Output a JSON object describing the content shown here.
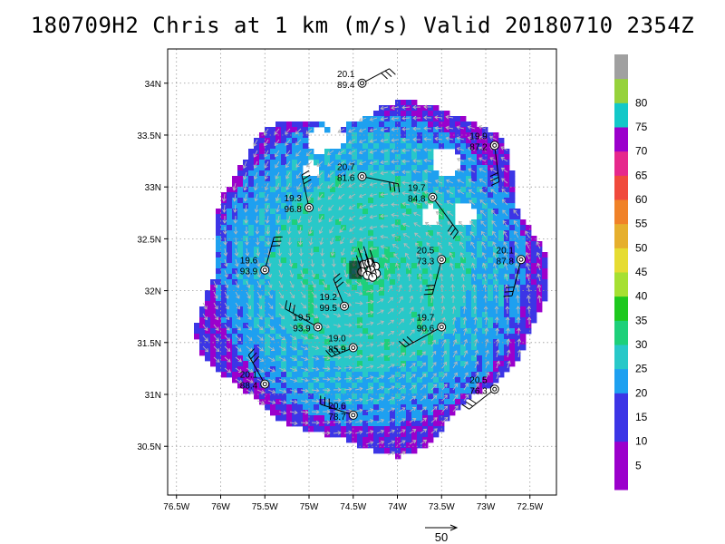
{
  "title": "180709H2 Chris at 1 km (m/s) Valid 20180710 2354Z",
  "axes": {
    "lon_ticks": [
      {
        "lon": -76.5,
        "label": "76.5W"
      },
      {
        "lon": -76.0,
        "label": "76W"
      },
      {
        "lon": -75.5,
        "label": "75.5W"
      },
      {
        "lon": -75.0,
        "label": "75W"
      },
      {
        "lon": -74.5,
        "label": "74.5W"
      },
      {
        "lon": -74.0,
        "label": "74W"
      },
      {
        "lon": -73.5,
        "label": "73.5W"
      },
      {
        "lon": -73.0,
        "label": "73W"
      },
      {
        "lon": -72.5,
        "label": "72.5W"
      }
    ],
    "lat_ticks": [
      {
        "lat": 30.5,
        "label": "30.5N"
      },
      {
        "lat": 31.0,
        "label": "31N"
      },
      {
        "lat": 31.5,
        "label": "31.5N"
      },
      {
        "lat": 32.0,
        "label": "32N"
      },
      {
        "lat": 32.5,
        "label": "32.5N"
      },
      {
        "lat": 33.0,
        "label": "33N"
      },
      {
        "lat": 33.5,
        "label": "33.5N"
      },
      {
        "lat": 34.0,
        "label": "34N"
      }
    ],
    "lon_range": [
      -76.6,
      -72.2
    ],
    "lat_range": [
      30.03,
      34.33
    ],
    "grid": true
  },
  "colorbar": {
    "levels": [
      {
        "label": "",
        "color": "#9b00cc"
      },
      {
        "label": "5",
        "color": "#9b00cc"
      },
      {
        "label": "10",
        "color": "#3c35e6"
      },
      {
        "label": "15",
        "color": "#3c35e6"
      },
      {
        "label": "20",
        "color": "#1ea0f0"
      },
      {
        "label": "25",
        "color": "#28c8c8"
      },
      {
        "label": "30",
        "color": "#1ed07a"
      },
      {
        "label": "35",
        "color": "#1ec81e"
      },
      {
        "label": "40",
        "color": "#a6e032"
      },
      {
        "label": "45",
        "color": "#e6dc32"
      },
      {
        "label": "50",
        "color": "#e6af2d"
      },
      {
        "label": "55",
        "color": "#f08228"
      },
      {
        "label": "60",
        "color": "#f04a3c"
      },
      {
        "label": "65",
        "color": "#e6288c"
      },
      {
        "label": "70",
        "color": "#9b00cc"
      },
      {
        "label": "75",
        "color": "#14c8c8"
      },
      {
        "label": "80",
        "color": "#96d23c"
      },
      {
        "label": "",
        "color": "#a0a0a0"
      }
    ]
  },
  "reference_vector": {
    "label": "50"
  },
  "storm_center": {
    "lon": -74.3,
    "lat": 32.2
  },
  "stations": [
    {
      "lon": -74.4,
      "lat": 34.0,
      "t1": "20.1",
      "t2": "89.4"
    },
    {
      "lon": -72.9,
      "lat": 33.4,
      "t1": "19.9",
      "t2": "87.2"
    },
    {
      "lon": -74.4,
      "lat": 33.1,
      "t1": "20.7",
      "t2": "81.6"
    },
    {
      "lon": -73.6,
      "lat": 32.9,
      "t1": "19.7",
      "t2": "84.8"
    },
    {
      "lon": -75.0,
      "lat": 32.8,
      "t1": "19.3",
      "t2": "96.8"
    },
    {
      "lon": -75.5,
      "lat": 32.2,
      "t1": "19.6",
      "t2": "93.9"
    },
    {
      "lon": -73.5,
      "lat": 32.3,
      "t1": "20.5",
      "t2": "73.3"
    },
    {
      "lon": -72.6,
      "lat": 32.3,
      "t1": "20.1",
      "t2": "87.8"
    },
    {
      "lon": -74.6,
      "lat": 31.85,
      "t1": "19.2",
      "t2": "99.5"
    },
    {
      "lon": -74.9,
      "lat": 31.65,
      "t1": "19.5",
      "t2": "93.9"
    },
    {
      "lon": -74.5,
      "lat": 31.45,
      "t1": "19.0",
      "t2": "85.9"
    },
    {
      "lon": -73.5,
      "lat": 31.65,
      "t1": "19.7",
      "t2": "90.6"
    },
    {
      "lon": -75.5,
      "lat": 31.1,
      "t1": "20.1",
      "t2": "88.4"
    },
    {
      "lon": -72.9,
      "lat": 31.05,
      "t1": "20.5",
      "t2": "76.3"
    },
    {
      "lon": -74.5,
      "lat": 30.8,
      "t1": "20.6",
      "t2": "78.7"
    }
  ]
}
